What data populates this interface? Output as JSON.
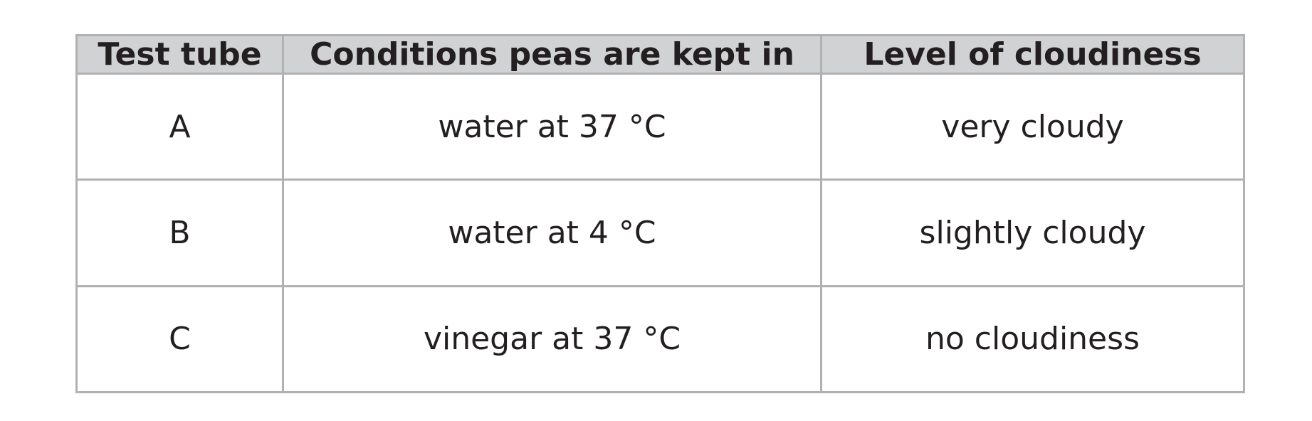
{
  "table": {
    "header": [
      "Test tube",
      "Conditions peas are kept in",
      "Level of cloudiness"
    ],
    "rows": [
      [
        "A",
        "water at 37 °C",
        "very cloudy"
      ],
      [
        "B",
        "water at 4 °C",
        "slightly cloudy"
      ],
      [
        "C",
        "vinegar at 37 °C",
        "no cloudiness"
      ]
    ]
  }
}
